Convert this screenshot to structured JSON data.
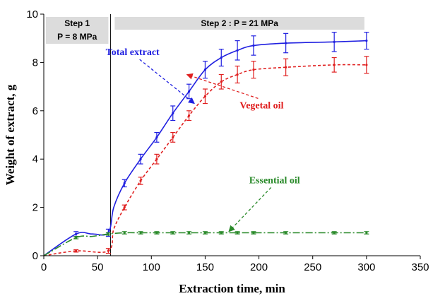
{
  "chart_data": {
    "type": "line",
    "xlabel": "Extraction time, min",
    "ylabel": "Weight of extract, g",
    "xlim": [
      0,
      350
    ],
    "ylim": [
      0,
      10
    ],
    "xticks": [
      "0",
      "50",
      "100",
      "150",
      "200",
      "250",
      "300",
      "350"
    ],
    "yticks": [
      "0",
      "2",
      "4",
      "6",
      "8",
      "10"
    ],
    "grid": false,
    "step_divider_x": 62,
    "steps": [
      {
        "line1": "Step 1",
        "line2": "P = 8 MPa",
        "x_start": 0,
        "x_end": 62
      },
      {
        "line1": "Step 2 : P = 21 MPa",
        "line2": "",
        "x_start": 62,
        "x_end": 300
      }
    ],
    "series": [
      {
        "name": "Total extract",
        "color": "#1f1fe0",
        "dash": "solid",
        "label_pos": [
          30,
          8.3
        ],
        "arrow_to": [
          140,
          6.3
        ],
        "x": [
          0,
          30,
          45,
          60,
          65,
          75,
          90,
          105,
          120,
          135,
          150,
          165,
          180,
          195,
          225,
          270,
          300
        ],
        "y": [
          0,
          0.9,
          0.9,
          0.95,
          2.0,
          3.0,
          4.0,
          4.9,
          5.9,
          6.8,
          7.7,
          8.2,
          8.5,
          8.7,
          8.8,
          8.85,
          8.9
        ],
        "err": [
          0,
          0.1,
          0,
          0.15,
          0,
          0.15,
          0.2,
          0.2,
          0.3,
          0.3,
          0.35,
          0.35,
          0.4,
          0.4,
          0.4,
          0.4,
          0.35
        ],
        "markers_from": 1
      },
      {
        "name": "Vegetal oil",
        "color": "#e02020",
        "dash": "4,3",
        "label_pos": [
          150,
          6.1
        ],
        "arrow_to": [
          133,
          7.5
        ],
        "x": [
          0,
          30,
          60,
          65,
          75,
          90,
          105,
          120,
          135,
          150,
          165,
          180,
          195,
          225,
          270,
          300
        ],
        "y": [
          0,
          0.2,
          0.2,
          1.1,
          2.0,
          3.1,
          4.0,
          4.9,
          5.8,
          6.6,
          7.2,
          7.5,
          7.7,
          7.8,
          7.9,
          7.9
        ],
        "err": [
          0,
          0.05,
          0.1,
          0,
          0.1,
          0.15,
          0.2,
          0.2,
          0.2,
          0.3,
          0.3,
          0.35,
          0.35,
          0.35,
          0.3,
          0.35
        ],
        "markers_from": 1
      },
      {
        "name": "Essential oil",
        "color": "#2a8a2a",
        "dash": "10,3,2,3",
        "label_pos": [
          162,
          3.0
        ],
        "arrow_to": [
          172,
          1.0
        ],
        "x": [
          0,
          30,
          45,
          60,
          75,
          90,
          105,
          120,
          135,
          150,
          165,
          180,
          195,
          225,
          270,
          300
        ],
        "y": [
          0,
          0.75,
          0.8,
          0.9,
          0.95,
          0.95,
          0.95,
          0.95,
          0.95,
          0.95,
          0.95,
          0.95,
          0.95,
          0.95,
          0.95,
          0.95
        ],
        "err": [
          0,
          0.05,
          0,
          0.05,
          0.05,
          0.05,
          0.05,
          0.05,
          0.05,
          0.05,
          0.05,
          0.05,
          0.05,
          0.05,
          0.05,
          0.05
        ],
        "markers_from": 1
      }
    ]
  }
}
